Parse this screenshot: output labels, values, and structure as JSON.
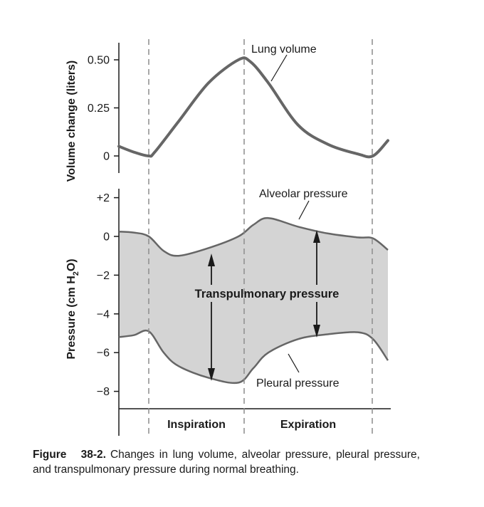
{
  "chart_data": [
    {
      "type": "line",
      "title": "",
      "ylabel": "Volume change (liters)",
      "xlabel": "",
      "ylim": [
        0,
        0.5
      ],
      "y_ticks": [
        "0.50",
        "0.25",
        "0"
      ],
      "y_tick_values": [
        0.5,
        0.25,
        0
      ],
      "x_range": [
        0,
        4.5
      ],
      "series": [
        {
          "name": "Lung volume",
          "x": [
            0,
            0.25,
            0.5,
            0.6,
            1.0,
            1.5,
            2.0,
            2.2,
            2.5,
            3.0,
            3.5,
            4.0,
            4.25,
            4.5
          ],
          "values": [
            0.05,
            0.02,
            0.0,
            0.02,
            0.18,
            0.38,
            0.5,
            0.49,
            0.38,
            0.16,
            0.06,
            0.01,
            0.0,
            0.08
          ]
        }
      ],
      "annotations": [
        {
          "text": "Lung volume",
          "points_to": "Lung volume"
        }
      ]
    },
    {
      "type": "area",
      "title": "",
      "ylabel": "Pressure (cm H2O)",
      "ylabel_parts": {
        "main": "Pressure (cm H",
        "sub": "2",
        "end": "O)"
      },
      "xlabel": "",
      "ylim": [
        -8.5,
        2
      ],
      "y_ticks": [
        "+2",
        "0",
        "−2",
        "−4",
        "−6",
        "−8"
      ],
      "y_tick_values": [
        2,
        0,
        -2,
        -4,
        -6,
        -8
      ],
      "x_range": [
        0,
        4.5
      ],
      "series": [
        {
          "name": "Alveolar pressure",
          "x": [
            0,
            0.25,
            0.5,
            0.75,
            1.0,
            1.5,
            2.0,
            2.25,
            2.5,
            3.0,
            3.5,
            4.0,
            4.25,
            4.5
          ],
          "values": [
            0.25,
            0.2,
            0.0,
            -0.75,
            -1.0,
            -0.6,
            0.0,
            0.6,
            0.95,
            0.5,
            0.15,
            -0.05,
            -0.1,
            -0.7
          ]
        },
        {
          "name": "Pleural pressure",
          "x": [
            0,
            0.25,
            0.5,
            0.75,
            1.0,
            1.5,
            2.0,
            2.25,
            2.5,
            3.0,
            3.5,
            4.0,
            4.25,
            4.5
          ],
          "values": [
            -5.2,
            -5.1,
            -4.9,
            -6.0,
            -6.7,
            -7.3,
            -7.55,
            -6.8,
            -6.0,
            -5.3,
            -5.05,
            -4.95,
            -5.3,
            -6.4
          ]
        }
      ],
      "fill_between": [
        "Alveolar pressure",
        "Pleural pressure"
      ],
      "annotations": [
        {
          "text": "Alveolar pressure",
          "points_to": "Alveolar pressure"
        },
        {
          "text": "Pleural pressure",
          "points_to": "Pleural pressure"
        },
        {
          "text": "Transpulmonary pressure",
          "kind": "double-arrow span between curves"
        }
      ]
    }
  ],
  "phases": [
    {
      "label": "Inspiration",
      "x_start": 0.5,
      "x_end": 2.0
    },
    {
      "label": "Expiration",
      "x_start": 2.0,
      "x_end": 4.25
    }
  ],
  "caption": {
    "label": "Figure   38-2.",
    "text": "Changes in lung volume, alveolar pressure, pleural pressure, and transpulmonary pressure during normal breathing."
  },
  "colors": {
    "curve": "#666666",
    "fill": "#d4d4d4",
    "axis": "#1a1a1a",
    "divider": "#8c8c8c"
  }
}
